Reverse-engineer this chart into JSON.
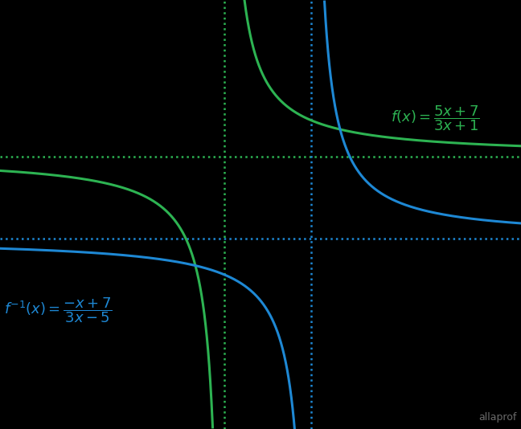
{
  "background_color": "#000000",
  "green_color": "#2db352",
  "blue_color": "#1e88d4",
  "fx_va": -0.3333,
  "fx_ha": 1.6667,
  "finv_va": 1.6667,
  "finv_ha": -0.3333,
  "xlim": [
    -5.5,
    6.5
  ],
  "ylim": [
    -5.0,
    5.5
  ],
  "figsize": [
    6.48,
    5.34
  ],
  "dpi": 100,
  "watermark": "allaprof"
}
